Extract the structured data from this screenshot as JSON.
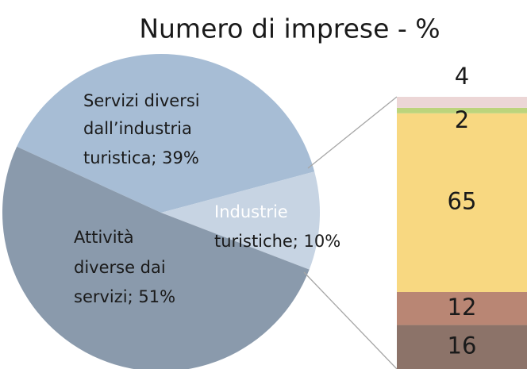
{
  "chart_data": {
    "type": "pie-of-bar",
    "title": "Numero di imprese - %",
    "pie": {
      "categories": [
        "Servizi diversi dall’industria turistica",
        "Industrie turistiche",
        "Attività diverse dai servizi"
      ],
      "values": [
        39,
        10,
        51
      ],
      "value_labels": [
        [
          "Servizi diversi",
          "dall’industria",
          "turistica; 39%"
        ],
        [
          "Industrie",
          "turistiche; 10%"
        ],
        [
          "Attività",
          "diverse dai",
          "servizi; 51%"
        ]
      ],
      "colors": [
        "#a7bdd5",
        "#c7d4e3",
        "#8a9aac"
      ]
    },
    "bar": {
      "values": [
        16,
        12,
        65,
        2,
        4
      ],
      "colors": [
        "#8c7369",
        "#b98674",
        "#f8d881",
        "#bcd47c",
        "#ecd6d6"
      ]
    }
  }
}
